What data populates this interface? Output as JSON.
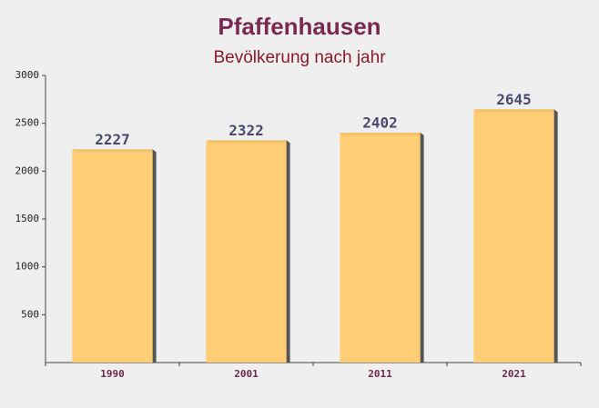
{
  "chart_data": {
    "type": "bar",
    "title": "Pfaffenhausen",
    "subtitle": "Bevölkerung nach jahr",
    "categories": [
      "1990",
      "2001",
      "2011",
      "2021"
    ],
    "values": [
      2227,
      2322,
      2402,
      2645
    ],
    "color": "#ffc966",
    "ylim": [
      0,
      3000
    ],
    "yticks": [
      500,
      1000,
      1500,
      2000,
      2500,
      3000
    ]
  }
}
